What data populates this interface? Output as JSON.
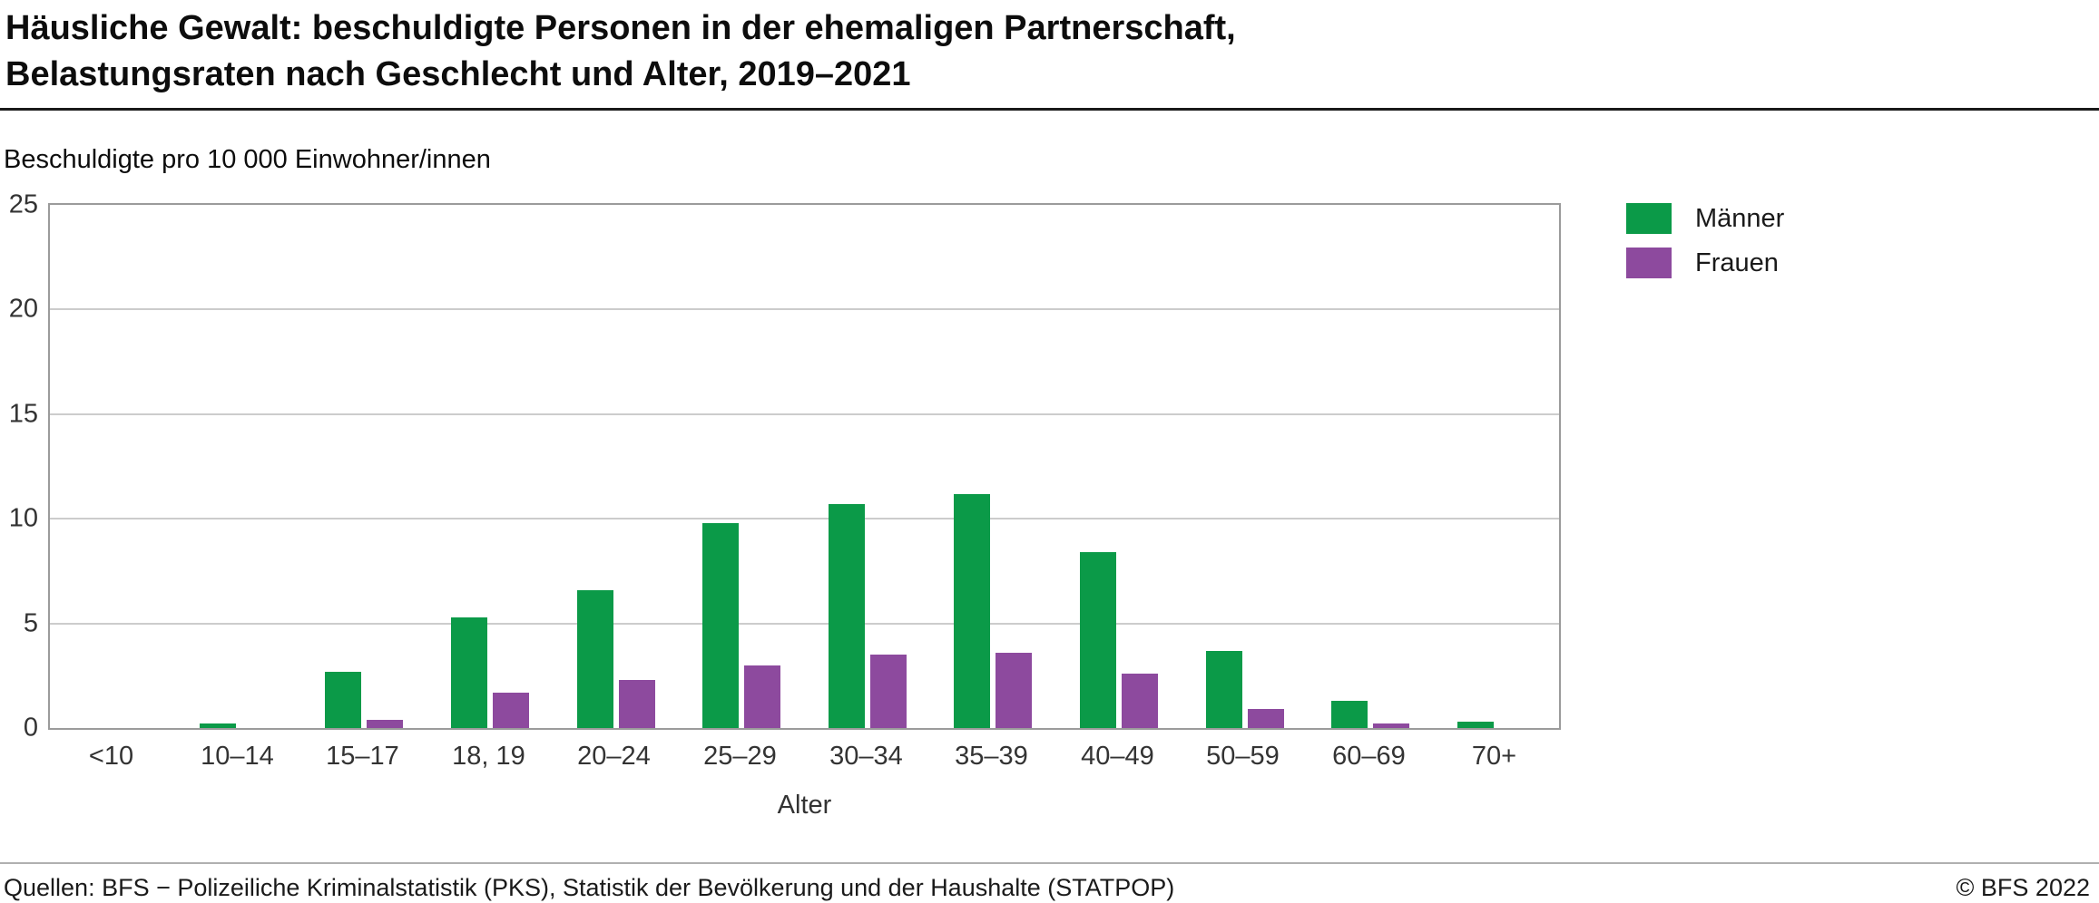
{
  "title": "Häusliche Gewalt: beschuldigte Personen in der ehemaligen Partnerschaft,\nBelastungsraten nach Geschlecht und Alter, 2019–2021",
  "subtitle": "Beschuldigte pro 10 000 Einwohner/innen",
  "xlabel": "Alter",
  "footer": {
    "source": "Quellen: BFS − Polizeiliche Kriminalstatistik (PKS), Statistik der Bevölkerung und der Haushalte (STATPOP)",
    "copyright": "© BFS 2022"
  },
  "colors": {
    "maenner": "#0b9a48",
    "frauen": "#8d4a9e"
  },
  "chart_data": {
    "type": "bar",
    "title": "Häusliche Gewalt: beschuldigte Personen in der ehemaligen Partnerschaft, Belastungsraten nach Geschlecht und Alter, 2019–2021",
    "xlabel": "Alter",
    "ylabel": "Beschuldigte pro 10 000 Einwohner/innen",
    "categories": [
      "<10",
      "10–14",
      "15–17",
      "18, 19",
      "20–24",
      "25–29",
      "30–34",
      "35–39",
      "40–49",
      "50–59",
      "60–69",
      "70+"
    ],
    "series": [
      {
        "name": "Männer",
        "color": "#0b9a48",
        "values": [
          0,
          0.2,
          2.7,
          5.3,
          6.6,
          9.8,
          10.7,
          11.2,
          8.4,
          3.7,
          1.3,
          0.3
        ]
      },
      {
        "name": "Frauen",
        "color": "#8d4a9e",
        "values": [
          0,
          0,
          0.4,
          1.7,
          2.3,
          3.0,
          3.5,
          3.6,
          2.6,
          0.9,
          0.2,
          0
        ]
      }
    ],
    "ylim": [
      0,
      25
    ],
    "yticks": [
      0,
      5,
      10,
      15,
      20,
      25
    ],
    "grid": true,
    "legend_position": "top-right-outside"
  }
}
